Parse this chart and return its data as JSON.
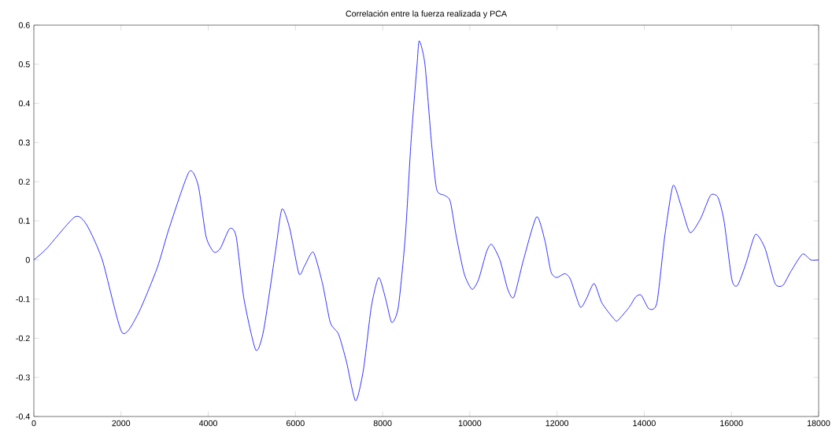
{
  "chart_data": {
    "type": "line",
    "title": "Correlación entre la fuerza realizada y PCA",
    "xlim": [
      0,
      18000
    ],
    "xticks": [
      0,
      2000,
      4000,
      6000,
      8000,
      10000,
      12000,
      14000,
      16000,
      18000
    ],
    "ylim": [
      -0.4,
      0.6
    ],
    "yticks": [
      -0.4,
      -0.3,
      -0.2,
      -0.1,
      0,
      0.1,
      0.2,
      0.3,
      0.4,
      0.5,
      0.6
    ],
    "grid": false,
    "series": [
      {
        "color": "#0000ff",
        "x": [
          0,
          300,
          940,
          1210,
          1570,
          2020,
          2380,
          2830,
          3100,
          3560,
          3770,
          3950,
          4130,
          4280,
          4490,
          4640,
          4820,
          5090,
          5270,
          5540,
          5690,
          5870,
          6080,
          6210,
          6410,
          6620,
          6800,
          6990,
          7170,
          7380,
          7560,
          7740,
          7910,
          8070,
          8210,
          8360,
          8520,
          8650,
          8790,
          8840,
          8970,
          9120,
          9240,
          9420,
          9550,
          9690,
          9870,
          10050,
          10200,
          10380,
          10500,
          10690,
          10870,
          11010,
          11230,
          11530,
          11720,
          11860,
          11990,
          12180,
          12310,
          12530,
          12670,
          12850,
          13030,
          13300,
          13390,
          13660,
          13800,
          13930,
          14110,
          14290,
          14470,
          14660,
          14840,
          15050,
          15290,
          15520,
          15690,
          15830,
          16010,
          16140,
          16330,
          16550,
          16770,
          17000,
          17180,
          17360,
          17630,
          17820,
          18000
        ],
        "values": [
          0,
          0.03,
          0.11,
          0.09,
          0,
          -0.185,
          -0.14,
          -0.02,
          0.08,
          0.225,
          0.19,
          0.06,
          0.02,
          0.03,
          0.08,
          0.06,
          -0.1,
          -0.23,
          -0.18,
          0.02,
          0.13,
          0.08,
          -0.035,
          -0.015,
          0.02,
          -0.06,
          -0.16,
          -0.19,
          -0.26,
          -0.36,
          -0.28,
          -0.12,
          -0.045,
          -0.1,
          -0.16,
          -0.12,
          0.06,
          0.3,
          0.5,
          0.56,
          0.5,
          0.3,
          0.18,
          0.165,
          0.15,
          0.06,
          -0.035,
          -0.075,
          -0.05,
          0.02,
          0.04,
          0,
          -0.075,
          -0.095,
          0,
          0.11,
          0.05,
          -0.03,
          -0.045,
          -0.035,
          -0.05,
          -0.12,
          -0.1,
          -0.06,
          -0.11,
          -0.15,
          -0.155,
          -0.12,
          -0.095,
          -0.09,
          -0.125,
          -0.11,
          0.06,
          0.19,
          0.14,
          0.07,
          0.105,
          0.165,
          0.16,
          0.1,
          -0.05,
          -0.065,
          -0.01,
          0.065,
          0.03,
          -0.06,
          -0.065,
          -0.03,
          0.015,
          0,
          0
        ]
      }
    ]
  }
}
